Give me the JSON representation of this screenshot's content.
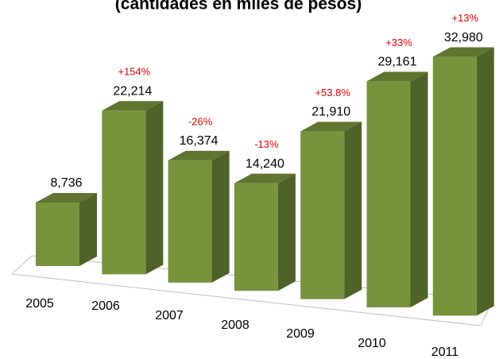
{
  "chart_data": {
    "type": "bar3d",
    "title": "(cantidades en miles de pesos)",
    "categories": [
      "2005",
      "2006",
      "2007",
      "2008",
      "2009",
      "2010",
      "2011"
    ],
    "values": [
      8736,
      22214,
      16374,
      14240,
      21910,
      29161,
      32980
    ],
    "value_labels": [
      "8,736",
      "22,214",
      "16,374",
      "14,240",
      "21,910",
      "29,161",
      "32,980"
    ],
    "annotations": [
      "+154%",
      "-26%",
      "-13%",
      "+53.8%",
      "+33%",
      "+13%"
    ],
    "color": "#77933c"
  }
}
